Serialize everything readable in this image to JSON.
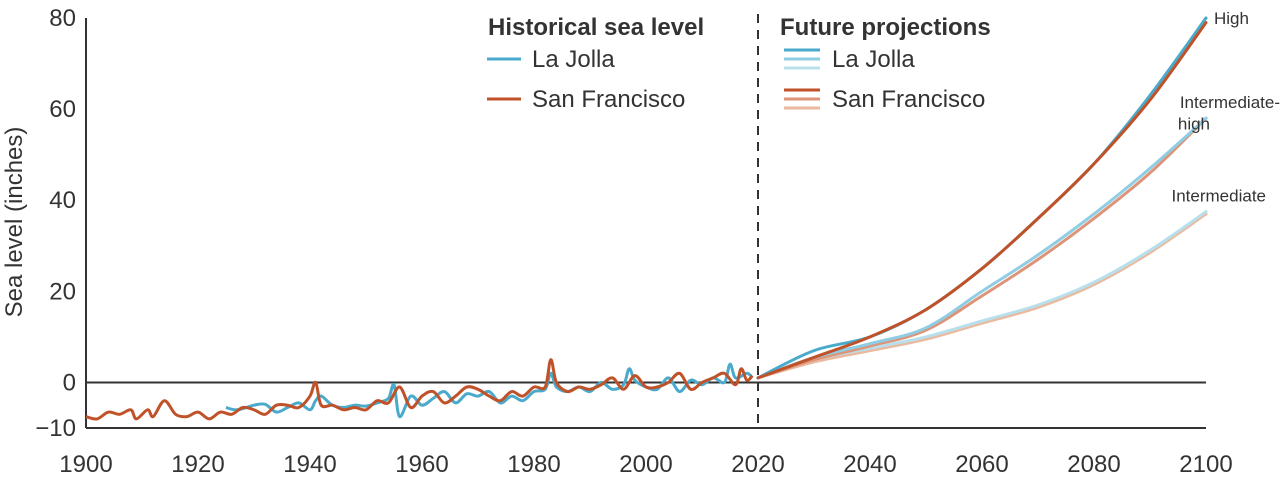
{
  "chart_data": {
    "type": "line",
    "xlim": [
      1900,
      2100
    ],
    "ylim": [
      -10,
      80
    ],
    "ylabel": "Sea level (inches)",
    "xticks": [
      1900,
      1920,
      1940,
      1960,
      1980,
      2000,
      2020,
      2040,
      2060,
      2080,
      2100
    ],
    "yticks": [
      -10,
      0,
      20,
      40,
      60,
      80
    ],
    "ytick_labels": [
      "−10",
      "0",
      "20",
      "40",
      "60",
      "80"
    ],
    "divider_x": 2020,
    "zero_line": 0,
    "legend": {
      "historical_title": "Historical sea level",
      "future_title": "Future projections",
      "la_jolla": "La Jolla",
      "san_francisco": "San Francisco"
    },
    "colors": {
      "la_jolla_hist": "#4aaacc",
      "san_francisco_hist": "#c0522a",
      "lj_high": "#4aaacc",
      "lj_int_high": "#8ecde3",
      "lj_int": "#b8e0ec",
      "sf_high": "#c0522a",
      "sf_int_high": "#dd9478",
      "sf_int": "#ebb99e"
    },
    "historical": [
      {
        "name": "La Jolla",
        "x": [
          1925,
          1927,
          1930,
          1932,
          1934,
          1936,
          1938,
          1940,
          1941,
          1942,
          1944,
          1946,
          1948,
          1950,
          1952,
          1954,
          1955,
          1956,
          1958,
          1960,
          1962,
          1964,
          1966,
          1968,
          1970,
          1972,
          1974,
          1976,
          1978,
          1980,
          1982,
          1983,
          1984,
          1986,
          1988,
          1990,
          1992,
          1994,
          1996,
          1997,
          1998,
          2000,
          2002,
          2004,
          2006,
          2008,
          2010,
          2012,
          2014,
          2015,
          2016,
          2018,
          2019
        ],
        "y": [
          -5.5,
          -6,
          -5,
          -4.8,
          -6.5,
          -5.5,
          -4.5,
          -6,
          -4,
          -3,
          -5,
          -5.5,
          -5,
          -5.2,
          -4.5,
          -3.5,
          -0.5,
          -7.5,
          -3,
          -5,
          -3.5,
          -2,
          -4.5,
          -2.5,
          -3,
          -2,
          -4.5,
          -3,
          -4,
          -2,
          -1.5,
          2,
          -1,
          -2,
          -1,
          -2,
          0,
          -1.5,
          -0.5,
          3,
          0.5,
          -1,
          -1.5,
          1,
          -2,
          0.5,
          -0.5,
          1,
          0,
          4,
          1,
          2,
          1
        ]
      },
      {
        "name": "San Francisco",
        "x": [
          1900,
          1902,
          1904,
          1906,
          1908,
          1909,
          1911,
          1912,
          1914,
          1916,
          1918,
          1920,
          1922,
          1924,
          1926,
          1928,
          1930,
          1932,
          1934,
          1936,
          1938,
          1940,
          1941,
          1942,
          1944,
          1946,
          1948,
          1950,
          1952,
          1954,
          1956,
          1958,
          1960,
          1962,
          1964,
          1966,
          1968,
          1970,
          1972,
          1974,
          1976,
          1978,
          1980,
          1982,
          1983,
          1984,
          1986,
          1988,
          1990,
          1992,
          1994,
          1996,
          1998,
          2000,
          2002,
          2004,
          2006,
          2008,
          2010,
          2012,
          2014,
          2016,
          2017,
          2018,
          2019
        ],
        "y": [
          -7.5,
          -8,
          -6.5,
          -7,
          -6,
          -8,
          -6,
          -7.5,
          -4,
          -7,
          -7.5,
          -6.5,
          -8,
          -6.5,
          -7,
          -5.5,
          -6,
          -7,
          -5,
          -5,
          -5.5,
          -3,
          0,
          -5,
          -5,
          -6,
          -5.5,
          -6,
          -4,
          -4.5,
          -1,
          -5.5,
          -3,
          -2,
          -4.5,
          -3,
          -1,
          -1.5,
          -3,
          -4,
          -2,
          -3,
          -1,
          -1,
          5,
          0,
          -2,
          -1,
          -1.5,
          -0.5,
          1,
          -1.5,
          1.5,
          -1,
          -1,
          0,
          2,
          -1.5,
          0,
          1,
          2,
          -0.5,
          3,
          0.5,
          1.5
        ]
      }
    ],
    "projections": [
      {
        "name": "La Jolla High",
        "x": [
          2020,
          2030,
          2040,
          2050,
          2060,
          2070,
          2080,
          2090,
          2100
        ],
        "y": [
          1,
          7,
          10,
          16,
          25,
          36,
          48,
          63,
          80
        ]
      },
      {
        "name": "San Francisco High",
        "x": [
          2020,
          2030,
          2040,
          2050,
          2060,
          2070,
          2080,
          2090,
          2100
        ],
        "y": [
          1,
          5.5,
          10,
          16,
          25,
          36,
          48,
          62,
          79
        ]
      },
      {
        "name": "La Jolla Intermediate-high",
        "x": [
          2020,
          2030,
          2040,
          2050,
          2060,
          2070,
          2080,
          2090,
          2100
        ],
        "y": [
          1,
          5.5,
          8.5,
          12,
          20,
          28,
          37,
          47,
          58
        ]
      },
      {
        "name": "San Francisco Intermediate-high",
        "x": [
          2020,
          2030,
          2040,
          2050,
          2060,
          2070,
          2080,
          2090,
          2100
        ],
        "y": [
          1,
          5,
          8,
          11.5,
          19,
          27,
          36,
          46,
          58
        ]
      },
      {
        "name": "La Jolla Intermediate",
        "x": [
          2020,
          2030,
          2040,
          2050,
          2060,
          2070,
          2080,
          2090,
          2100
        ],
        "y": [
          1,
          5,
          7.5,
          10,
          13.5,
          17,
          22,
          29,
          37.5
        ]
      },
      {
        "name": "San Francisco Intermediate",
        "x": [
          2020,
          2030,
          2040,
          2050,
          2060,
          2070,
          2080,
          2090,
          2100
        ],
        "y": [
          1,
          4.5,
          7,
          9.5,
          13,
          16.5,
          21.5,
          28.5,
          37
        ]
      }
    ],
    "scenario_labels": [
      {
        "text": "High",
        "x": 2100,
        "y": 80
      },
      {
        "text": "Intermediate-",
        "x": 2100,
        "y": 62
      },
      {
        "text": "high",
        "x": 2100,
        "y": 59
      },
      {
        "text": "Intermediate",
        "x": 2100,
        "y": 41
      }
    ]
  }
}
